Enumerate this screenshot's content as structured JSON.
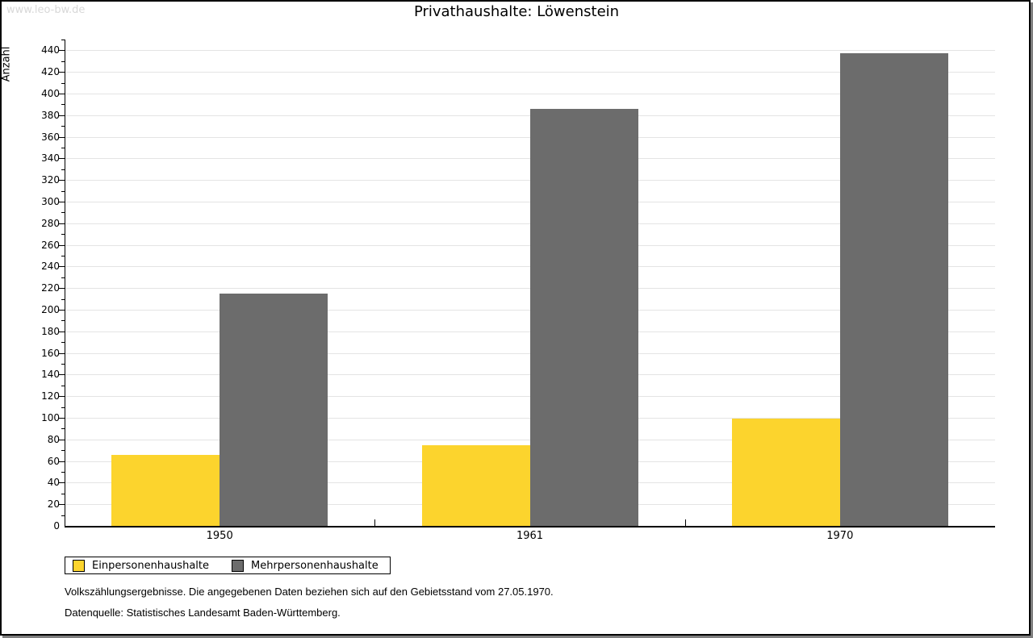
{
  "watermark": "www.leo-bw.de",
  "title": "Privathaushalte: Löwenstein",
  "chart_data": {
    "type": "bar",
    "title": "Privathaushalte: Löwenstein",
    "categories": [
      "1950",
      "1961",
      "1970"
    ],
    "series": [
      {
        "name": "Einpersonenhaushalte",
        "color": "#fcd42d",
        "values": [
          66,
          75,
          99
        ]
      },
      {
        "name": "Mehrpersonenhaushalte",
        "color": "#6c6c6c",
        "values": [
          215,
          386,
          437
        ]
      }
    ],
    "xlabel": "",
    "ylabel": "Anzahl",
    "ylim": [
      0,
      450
    ],
    "ytick_step": 20,
    "ytick_label_max": 440,
    "minor_tick_step": 10,
    "grid": true,
    "gridline_color": "#e4e4e4",
    "legend_position": "bottom-left"
  },
  "footer": {
    "line1": "Volkszählungsergebnisse. Die angegebenen Daten beziehen sich auf den Gebietsstand vom 27.05.1970.",
    "line2": "Datenquelle: Statistisches Landesamt Baden-Württemberg."
  }
}
